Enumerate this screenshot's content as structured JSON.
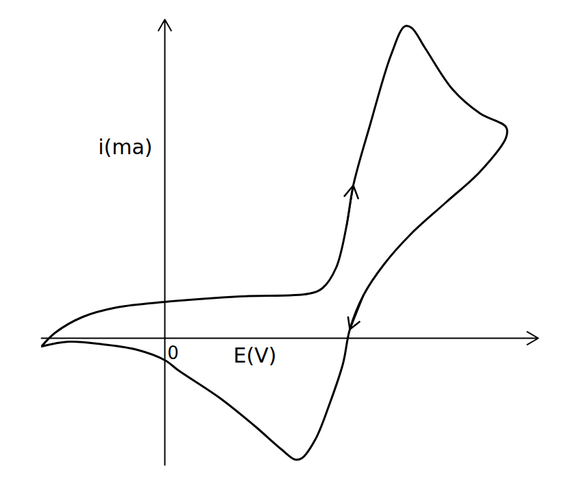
{
  "chart_data": {
    "type": "line",
    "xlabel": "E(V)",
    "ylabel": "i(ma)",
    "x": [
      -1.8,
      -1.6,
      -1.2,
      -0.7,
      0,
      1.1,
      2.1,
      2.3,
      2.5,
      2.65,
      2.75,
      3.0,
      3.3,
      3.5,
      3.6,
      3.8,
      4.2,
      4.6,
      4.98,
      4.98,
      4.6,
      4.1,
      3.6,
      3.2,
      2.9,
      2.7,
      2.6,
      2.4,
      2.2,
      2.0,
      1.9,
      1.7,
      1.3,
      0.8,
      0.2,
      0,
      -0.4,
      -0.9,
      -1.4,
      -1.8
    ],
    "values": [
      -0.12,
      0.08,
      0.31,
      0.45,
      0.53,
      0.61,
      0.65,
      0.73,
      1.03,
      1.63,
      2.23,
      3.13,
      4.13,
      4.55,
      4.53,
      4.23,
      3.63,
      3.28,
      3.08,
      2.93,
      2.43,
      1.98,
      1.53,
      1.08,
      0.63,
      0.13,
      -0.37,
      -0.97,
      -1.47,
      -1.75,
      -1.77,
      -1.62,
      -1.27,
      -0.87,
      -0.47,
      -0.32,
      -0.17,
      -0.09,
      -0.05,
      -0.12
    ],
    "color": "#000000",
    "xlim": [
      -1.8,
      5.45
    ],
    "ylim": [
      -1.85,
      4.65
    ],
    "xticks": [
      0
    ],
    "yticks": [],
    "grid": false
  }
}
